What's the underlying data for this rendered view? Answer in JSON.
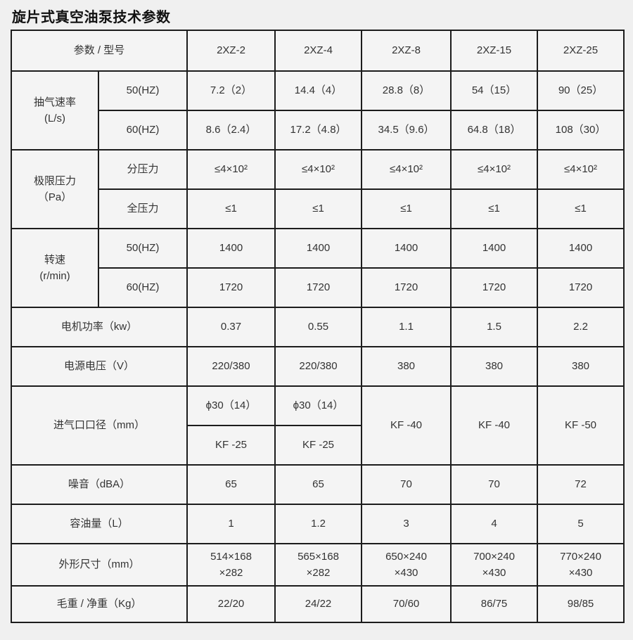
{
  "title": "旋片式真空油泵技术参数",
  "colors": {
    "page_bg": "#f0f0f0",
    "cell_bg": "#f4f4f4",
    "border": "#1c1c1c",
    "text": "#333333",
    "title": "#111111"
  },
  "models": [
    "2XZ-2",
    "2XZ-4",
    "2XZ-8",
    "2XZ-15",
    "2XZ-25"
  ],
  "table": {
    "rows": [
      {
        "cells": [
          {
            "t": "参数 / 型号",
            "cs": 2,
            "n": "param-model-header"
          },
          {
            "t": "2XZ-2",
            "n": "model-header"
          },
          {
            "t": "2XZ-4",
            "n": "model-header"
          },
          {
            "t": "2XZ-8",
            "n": "model-header"
          },
          {
            "t": "2XZ-15",
            "n": "model-header"
          },
          {
            "t": "2XZ-25",
            "n": "model-header"
          }
        ]
      },
      {
        "cells": [
          {
            "t": "抽气速率\n(L/s)",
            "rs": 2,
            "n": "param-label"
          },
          {
            "t": "50(HZ)",
            "n": "sub-param-label"
          },
          {
            "t": "7.2（2）"
          },
          {
            "t": "14.4（4）"
          },
          {
            "t": "28.8（8）"
          },
          {
            "t": "54（15）"
          },
          {
            "t": "90（25）"
          }
        ]
      },
      {
        "cells": [
          {
            "t": "60(HZ)",
            "n": "sub-param-label"
          },
          {
            "t": "8.6（2.4）"
          },
          {
            "t": "17.2（4.8）"
          },
          {
            "t": "34.5（9.6）"
          },
          {
            "t": "64.8（18）"
          },
          {
            "t": "108（30）"
          }
        ]
      },
      {
        "cells": [
          {
            "t": "极限压力\n（Pa）",
            "rs": 2,
            "n": "param-label"
          },
          {
            "t": "分压力",
            "n": "sub-param-label"
          },
          {
            "t": "≤4×10²"
          },
          {
            "t": "≤4×10²"
          },
          {
            "t": "≤4×10²"
          },
          {
            "t": "≤4×10²"
          },
          {
            "t": "≤4×10²"
          }
        ]
      },
      {
        "cells": [
          {
            "t": "全压力",
            "n": "sub-param-label"
          },
          {
            "t": "≤1"
          },
          {
            "t": "≤1"
          },
          {
            "t": "≤1"
          },
          {
            "t": "≤1"
          },
          {
            "t": "≤1"
          }
        ]
      },
      {
        "cells": [
          {
            "t": "转速\n(r/min)",
            "rs": 2,
            "n": "param-label"
          },
          {
            "t": "50(HZ)",
            "n": "sub-param-label"
          },
          {
            "t": "1400"
          },
          {
            "t": "1400"
          },
          {
            "t": "1400"
          },
          {
            "t": "1400"
          },
          {
            "t": "1400"
          }
        ]
      },
      {
        "cells": [
          {
            "t": "60(HZ)",
            "n": "sub-param-label"
          },
          {
            "t": "1720"
          },
          {
            "t": "1720"
          },
          {
            "t": "1720"
          },
          {
            "t": "1720"
          },
          {
            "t": "1720"
          }
        ]
      },
      {
        "cells": [
          {
            "t": "电机功率（kw）",
            "cs": 2,
            "n": "param-label"
          },
          {
            "t": "0.37"
          },
          {
            "t": "0.55"
          },
          {
            "t": "1.1"
          },
          {
            "t": "1.5"
          },
          {
            "t": "2.2"
          }
        ]
      },
      {
        "cells": [
          {
            "t": "电源电压（V）",
            "cs": 2,
            "n": "param-label"
          },
          {
            "t": "220/380"
          },
          {
            "t": "220/380"
          },
          {
            "t": "380"
          },
          {
            "t": "380"
          },
          {
            "t": "380"
          }
        ]
      },
      {
        "cells": [
          {
            "t": "进气口口径（mm）",
            "cs": 2,
            "rs": 2,
            "n": "param-label"
          },
          {
            "t": "ϕ30（14）"
          },
          {
            "t": "ϕ30（14）"
          },
          {
            "t": "KF -40",
            "rs": 2
          },
          {
            "t": "KF -40",
            "rs": 2
          },
          {
            "t": "KF -50",
            "rs": 2
          }
        ]
      },
      {
        "cells": [
          {
            "t": "KF -25"
          },
          {
            "t": "KF -25"
          }
        ]
      },
      {
        "cells": [
          {
            "t": "噪音（dBA）",
            "cs": 2,
            "n": "param-label"
          },
          {
            "t": "65"
          },
          {
            "t": "65"
          },
          {
            "t": "70"
          },
          {
            "t": "70"
          },
          {
            "t": "72"
          }
        ]
      },
      {
        "cells": [
          {
            "t": "容油量（L）",
            "cs": 2,
            "n": "param-label"
          },
          {
            "t": "1"
          },
          {
            "t": "1.2"
          },
          {
            "t": "3"
          },
          {
            "t": "4"
          },
          {
            "t": "5"
          }
        ]
      },
      {
        "cells": [
          {
            "t": "外形尺寸（mm）",
            "cs": 2,
            "n": "param-label"
          },
          {
            "t": "514×168\n×282"
          },
          {
            "t": "565×168\n×282"
          },
          {
            "t": "650×240\n×430"
          },
          {
            "t": "700×240\n×430"
          },
          {
            "t": "770×240\n×430"
          }
        ]
      },
      {
        "cells": [
          {
            "t": "毛重 / 净重（Kg）",
            "cs": 2,
            "n": "param-label"
          },
          {
            "t": "22/20"
          },
          {
            "t": "24/22"
          },
          {
            "t": "70/60"
          },
          {
            "t": "86/75"
          },
          {
            "t": "98/85"
          }
        ]
      }
    ]
  }
}
